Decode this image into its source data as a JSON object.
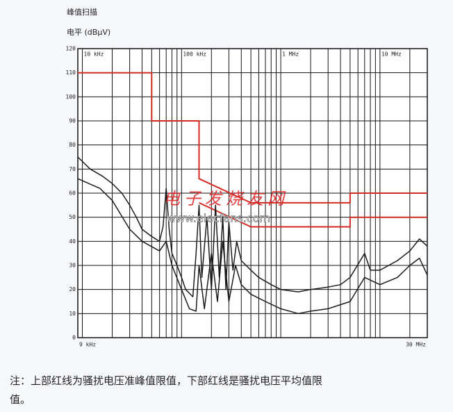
{
  "chart_data": {
    "type": "line",
    "title": "峰值扫描",
    "ylabel": "电平 (dBμV)",
    "xscale": "log",
    "grid": true,
    "xlim": [
      9000,
      30000000
    ],
    "ylim": [
      0,
      120
    ],
    "yticks": [
      0,
      10,
      20,
      30,
      40,
      50,
      60,
      70,
      80,
      90,
      100,
      110,
      120
    ],
    "xticks": [
      {
        "value": 9000,
        "label": "9 kHz"
      },
      {
        "value": 10000,
        "label": "10 kHz"
      },
      {
        "value": 100000,
        "label": "100 kHz"
      },
      {
        "value": 1000000,
        "label": "1 MHz"
      },
      {
        "value": 10000000,
        "label": "10 MHz"
      },
      {
        "value": 30000000,
        "label": "30 MHz"
      }
    ],
    "xminorticks": [
      20000,
      30000,
      40000,
      50000,
      60000,
      70000,
      80000,
      90000,
      200000,
      300000,
      400000,
      500000,
      600000,
      700000,
      800000,
      900000,
      2000000,
      3000000,
      4000000,
      5000000,
      6000000,
      7000000,
      8000000,
      9000000,
      20000000
    ],
    "series": [
      {
        "color": "#d42a24",
        "x": [
          9000,
          50000,
          50000,
          150000,
          150000,
          500000,
          5000000,
          5000000,
          30000000
        ],
        "values": [
          110,
          110,
          90,
          90,
          66,
          56,
          56,
          60,
          60
        ]
      },
      {
        "color": "#d42a24",
        "x": [
          150000,
          500000,
          5000000,
          5000000,
          30000000
        ],
        "values": [
          56,
          46,
          46,
          50,
          50
        ]
      },
      {
        "color": "#1a1a1a",
        "x": [
          9000,
          12000,
          16000,
          20000,
          25000,
          30000,
          35000,
          40000,
          50000,
          60000,
          65000,
          70000,
          75000,
          80000,
          90000,
          100000,
          110000,
          130000,
          140000,
          150000,
          160000,
          180000,
          200000,
          220000,
          240000,
          260000,
          280000,
          300000,
          330000,
          360000,
          400000,
          500000,
          600000,
          800000,
          1000000,
          1500000,
          2000000,
          3000000,
          4000000,
          5000000,
          7000000,
          8000000,
          10000000,
          15000000,
          20000000,
          25000000,
          30000000
        ],
        "values": [
          75,
          70,
          67,
          64,
          60,
          55,
          50,
          45,
          42,
          40,
          46,
          62,
          45,
          35,
          30,
          25,
          20,
          17,
          35,
          55,
          25,
          50,
          20,
          55,
          25,
          50,
          20,
          48,
          28,
          40,
          32,
          28,
          25,
          22,
          20,
          19,
          20,
          21,
          22,
          25,
          35,
          28,
          28,
          32,
          36,
          41,
          38
        ]
      },
      {
        "color": "#1a1a1a",
        "x": [
          9000,
          15000,
          20000,
          30000,
          40000,
          60000,
          70000,
          80000,
          100000,
          120000,
          140000,
          150000,
          170000,
          200000,
          230000,
          260000,
          300000,
          350000,
          400000,
          500000,
          700000,
          1000000,
          1500000,
          2000000,
          3000000,
          5000000,
          7000000,
          10000000,
          15000000,
          20000000,
          25000000,
          30000000
        ],
        "values": [
          66,
          62,
          57,
          45,
          40,
          36,
          40,
          30,
          20,
          12,
          11,
          30,
          12,
          35,
          15,
          40,
          15,
          30,
          22,
          18,
          15,
          12,
          10,
          11,
          12,
          15,
          25,
          22,
          25,
          30,
          33,
          26
        ]
      }
    ]
  },
  "watermark": {
    "cn": "电子发烧友网",
    "url": "www.elecfans.com"
  },
  "caption": [
    "注：上部红线为骚扰电压准峰值限值，下部红线是骚扰电压平均值限值。"
  ]
}
